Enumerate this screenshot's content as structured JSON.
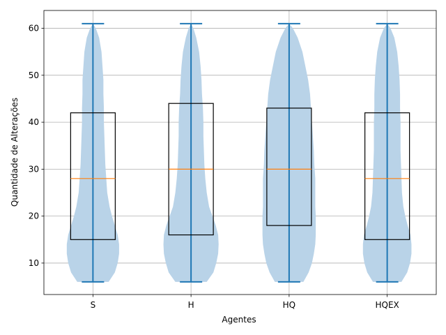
{
  "chart_data": {
    "type": "violin",
    "xlabel": "Agentes",
    "ylabel": "Quantidade de Alterações",
    "categories": [
      "S",
      "H",
      "HQ",
      "HQEX"
    ],
    "ylim": [
      3.3,
      63.8
    ],
    "yticks": [
      10,
      20,
      30,
      40,
      50,
      60
    ],
    "grid": "y",
    "series": [
      {
        "category": "S",
        "min": 6,
        "max": 61,
        "q1": 15,
        "median": 28,
        "q3": 42,
        "density": [
          [
            6,
            0.33
          ],
          [
            8,
            0.46
          ],
          [
            10,
            0.52
          ],
          [
            12,
            0.55
          ],
          [
            14,
            0.55
          ],
          [
            16,
            0.52
          ],
          [
            18,
            0.46
          ],
          [
            20,
            0.4
          ],
          [
            22,
            0.35
          ],
          [
            25,
            0.3
          ],
          [
            28,
            0.28
          ],
          [
            31,
            0.26
          ],
          [
            34,
            0.25
          ],
          [
            37,
            0.24
          ],
          [
            40,
            0.23
          ],
          [
            43,
            0.23
          ],
          [
            46,
            0.22
          ],
          [
            49,
            0.22
          ],
          [
            52,
            0.2
          ],
          [
            55,
            0.18
          ],
          [
            58,
            0.13
          ],
          [
            60,
            0.06
          ],
          [
            61,
            0.0
          ]
        ]
      },
      {
        "category": "H",
        "min": 6,
        "max": 61,
        "q1": 16,
        "median": 30,
        "q3": 44,
        "density": [
          [
            6,
            0.33
          ],
          [
            8,
            0.47
          ],
          [
            10,
            0.53
          ],
          [
            12,
            0.57
          ],
          [
            14,
            0.58
          ],
          [
            16,
            0.57
          ],
          [
            18,
            0.52
          ],
          [
            20,
            0.45
          ],
          [
            22,
            0.38
          ],
          [
            25,
            0.33
          ],
          [
            28,
            0.3
          ],
          [
            31,
            0.28
          ],
          [
            34,
            0.27
          ],
          [
            37,
            0.26
          ],
          [
            40,
            0.26
          ],
          [
            43,
            0.25
          ],
          [
            46,
            0.23
          ],
          [
            49,
            0.22
          ],
          [
            52,
            0.2
          ],
          [
            55,
            0.17
          ],
          [
            58,
            0.11
          ],
          [
            60,
            0.05
          ],
          [
            61,
            0.0
          ]
        ]
      },
      {
        "category": "HQ",
        "min": 6,
        "max": 61,
        "q1": 18,
        "median": 30,
        "q3": 43,
        "density": [
          [
            6,
            0.3
          ],
          [
            8,
            0.41
          ],
          [
            10,
            0.48
          ],
          [
            12,
            0.52
          ],
          [
            14,
            0.55
          ],
          [
            16,
            0.56
          ],
          [
            18,
            0.56
          ],
          [
            20,
            0.56
          ],
          [
            22,
            0.55
          ],
          [
            25,
            0.55
          ],
          [
            28,
            0.55
          ],
          [
            31,
            0.53
          ],
          [
            34,
            0.52
          ],
          [
            37,
            0.5
          ],
          [
            40,
            0.48
          ],
          [
            43,
            0.46
          ],
          [
            46,
            0.44
          ],
          [
            49,
            0.4
          ],
          [
            52,
            0.34
          ],
          [
            55,
            0.28
          ],
          [
            58,
            0.18
          ],
          [
            60,
            0.08
          ],
          [
            61,
            0.0
          ]
        ]
      },
      {
        "category": "HQEX",
        "min": 6,
        "max": 61,
        "q1": 15,
        "median": 28,
        "q3": 42,
        "density": [
          [
            6,
            0.3
          ],
          [
            8,
            0.42
          ],
          [
            10,
            0.48
          ],
          [
            12,
            0.51
          ],
          [
            14,
            0.51
          ],
          [
            16,
            0.49
          ],
          [
            18,
            0.43
          ],
          [
            20,
            0.38
          ],
          [
            22,
            0.34
          ],
          [
            25,
            0.31
          ],
          [
            28,
            0.3
          ],
          [
            31,
            0.29
          ],
          [
            34,
            0.28
          ],
          [
            37,
            0.28
          ],
          [
            40,
            0.28
          ],
          [
            43,
            0.27
          ],
          [
            46,
            0.27
          ],
          [
            49,
            0.26
          ],
          [
            52,
            0.24
          ],
          [
            55,
            0.21
          ],
          [
            58,
            0.15
          ],
          [
            60,
            0.07
          ],
          [
            61,
            0.0
          ]
        ]
      }
    ],
    "colors": {
      "violin_fill": "#b9d3e8",
      "violin_lines": "#1f77b4",
      "box_edge": "#000000",
      "median": "#ff7f0e",
      "grid": "#b0b0b0"
    }
  }
}
